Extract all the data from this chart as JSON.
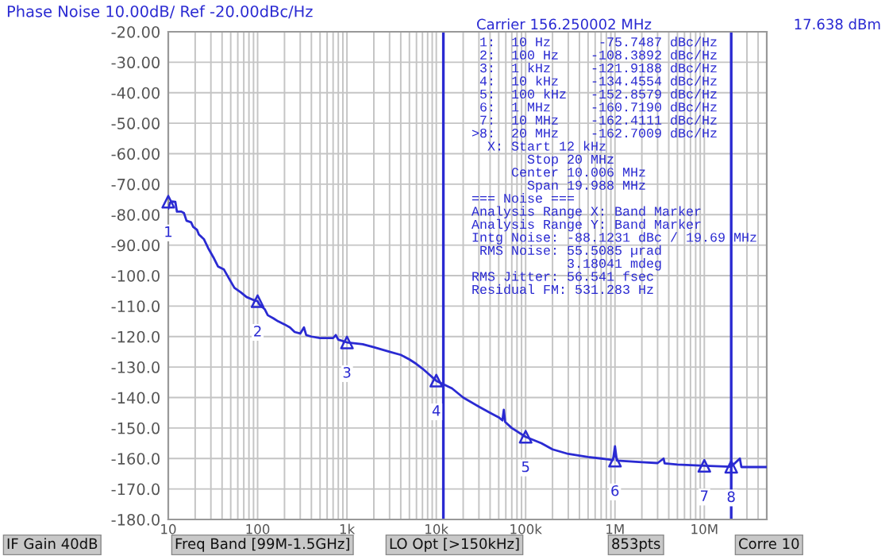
{
  "chart_data": {
    "type": "line",
    "title": "Phase Noise 10.00dB/ Ref -20.00dBc/Hz",
    "log": "x",
    "xlim": [
      10,
      50000000
    ],
    "xticks": [
      {
        "value": 10,
        "label": "10"
      },
      {
        "value": 100,
        "label": "100"
      },
      {
        "value": 1000,
        "label": "1k"
      },
      {
        "value": 10000,
        "label": "10k"
      },
      {
        "value": 100000,
        "label": "100k"
      },
      {
        "value": 1000000,
        "label": "1M"
      },
      {
        "value": 10000000,
        "label": "10M"
      }
    ],
    "ylim": [
      -180,
      -20
    ],
    "yticks": [
      {
        "value": -20,
        "label": "-20.00"
      },
      {
        "value": -30,
        "label": "-30.00"
      },
      {
        "value": -40,
        "label": "-40.00"
      },
      {
        "value": -50,
        "label": "-50.00"
      },
      {
        "value": -60,
        "label": "-60.00"
      },
      {
        "value": -70,
        "label": "-70.00"
      },
      {
        "value": -80,
        "label": "-80.00"
      },
      {
        "value": -90,
        "label": "-90.00"
      },
      {
        "value": -100,
        "label": "-100.0"
      },
      {
        "value": -110,
        "label": "-110.0"
      },
      {
        "value": -120,
        "label": "-120.0"
      },
      {
        "value": -130,
        "label": "-130.0"
      },
      {
        "value": -140,
        "label": "-140.0"
      },
      {
        "value": -150,
        "label": "-150.0"
      },
      {
        "value": -160,
        "label": "-160.0"
      },
      {
        "value": -170,
        "label": "-170.0"
      },
      {
        "value": -180,
        "label": "-180.0"
      }
    ],
    "grid": true,
    "series": [
      {
        "color": "#2a2ad2",
        "marker": "none",
        "line_style": "solid",
        "x": [
          10,
          10.5,
          11,
          12,
          12.5,
          14,
          15,
          16,
          18,
          19,
          21,
          22,
          25,
          28,
          32,
          36,
          42,
          48,
          55,
          65,
          75,
          90,
          100,
          105,
          110,
          120,
          130,
          150,
          170,
          200,
          230,
          260,
          300,
          330,
          350,
          400,
          500,
          600,
          700,
          750,
          800,
          1000,
          1500,
          2000,
          3000,
          4000,
          5000,
          6000,
          7000,
          8000,
          10000,
          15000,
          20000,
          30000,
          40000,
          50000,
          55000,
          57000,
          59000,
          70000,
          100000,
          150000,
          200000,
          300000,
          500000,
          700000,
          950000,
          1000000,
          1050000,
          2000000,
          3000000,
          3500000,
          3600000,
          5000000,
          10000000,
          20000000,
          25000000,
          26000000,
          50000000
        ],
        "values": [
          -78,
          -76,
          -75.7,
          -75.8,
          -79,
          -79,
          -79.5,
          -82,
          -82.5,
          -84,
          -85,
          -86.5,
          -88,
          -91,
          -94,
          -97,
          -98,
          -101,
          -104,
          -105.5,
          -107,
          -108,
          -108.4,
          -109.5,
          -110,
          -111,
          -113,
          -114,
          -115,
          -116,
          -117,
          -118.5,
          -119,
          -117,
          -119.5,
          -120,
          -120.5,
          -120.5,
          -120.5,
          -119.5,
          -121,
          -121.9,
          -122.5,
          -123.5,
          -125,
          -126,
          -127.5,
          -129,
          -130.5,
          -132,
          -134.5,
          -137,
          -140,
          -143,
          -145,
          -146.5,
          -147.5,
          -144,
          -148,
          -150,
          -152.9,
          -155,
          -157,
          -158.5,
          -159.5,
          -160,
          -160.5,
          -156,
          -160.7,
          -161.2,
          -161.5,
          -160,
          -161.6,
          -162,
          -162.4,
          -162.7,
          -160,
          -162.8,
          -162.8
        ]
      },
      {
        "type": "scatter",
        "color": "#2a2ad2",
        "marker": "triangle",
        "x": [
          10,
          100,
          1000,
          10000,
          100000,
          1000000,
          10000000,
          20000000
        ],
        "values": [
          -75.7487,
          -108.3892,
          -121.9188,
          -134.4554,
          -152.8579,
          -160.719,
          -162.4111,
          -162.7009
        ]
      }
    ],
    "ref_lines": [
      {
        "axis": "x",
        "value": 12000,
        "label": null,
        "color": "#2a2ad2"
      },
      {
        "axis": "x",
        "value": 20000000,
        "label": null,
        "color": "#2a2ad2"
      }
    ],
    "annotations": [
      "Carrier 156.250002 MHz",
      "17.638 dBm",
      " 1:  10 Hz      -75.7487 dBc/Hz",
      " 2:  100 Hz    -108.3892 dBc/Hz",
      " 3:  1 kHz     -121.9188 dBc/Hz",
      " 4:  10 kHz    -134.4554 dBc/Hz",
      " 5:  100 kHz   -152.8579 dBc/Hz",
      " 6:  1 MHz     -160.7190 dBc/Hz",
      " 7:  10 MHz    -162.4111 dBc/Hz",
      ">8:  20 MHz    -162.7009 dBc/Hz",
      "  X: Start 12 kHz",
      "       Stop 20 MHz",
      "     Center 10.006 MHz",
      "       Span 19.988 MHz",
      "=== Noise ===",
      "Analysis Range X: Band Marker",
      "Analysis Range Y: Band Marker",
      "Intg Noise: -88.1231 dBc / 19.69 MHz",
      " RMS Noise: 55.5085 µrad",
      "            3.18041 mdeg",
      "RMS Jitter: 56.541 fsec",
      "Residual FM: 531.283 Hz",
      {
        "text": "1",
        "x": 10,
        "y": -75.7487
      },
      {
        "text": "2",
        "x": 100,
        "y": -108.3892
      },
      {
        "text": "3",
        "x": 1000,
        "y": -121.9188
      },
      {
        "text": "4",
        "x": 10000,
        "y": -134.4554
      },
      {
        "text": "5",
        "x": 100000,
        "y": -152.8579
      },
      {
        "text": "6",
        "x": 1000000,
        "y": -160.719
      },
      {
        "text": "7",
        "x": 10000000,
        "y": -162.4111
      },
      {
        "text": "8",
        "x": 20000000,
        "y": -162.7009
      },
      "IF Gain 40dB",
      "Freq Band [99M-1.5GHz]",
      "LO Opt [>150kHz]",
      "853pts",
      "Corre 10"
    ]
  }
}
